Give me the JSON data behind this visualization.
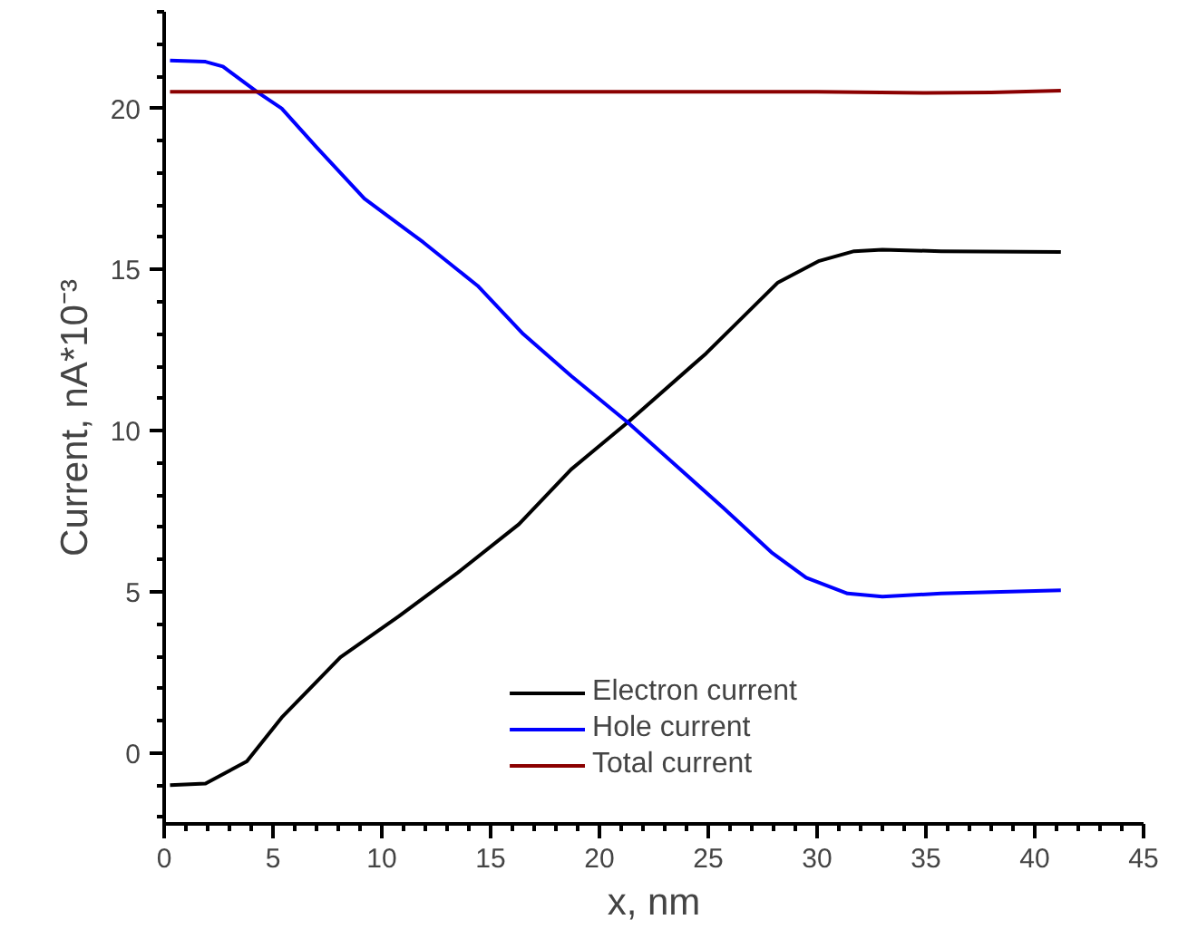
{
  "chart_data": {
    "type": "line",
    "xlabel": "x, nm",
    "ylabel": "Current, nA*10⁻³",
    "xlim": [
      0,
      45
    ],
    "ylim": [
      -2.2,
      23
    ],
    "xticks": [
      0,
      5,
      10,
      15,
      20,
      25,
      30,
      35,
      40,
      45
    ],
    "yticks": [
      0,
      5,
      10,
      15,
      20
    ],
    "grid": false,
    "legend": "bottom",
    "line_style": "solid",
    "marker": "none",
    "series": [
      {
        "name": "Electron current",
        "color": "#000000",
        "x": [
          0.27,
          1.9,
          3.8,
          5.4,
          8.1,
          10.8,
          13.5,
          16.3,
          18.7,
          21.3,
          24.9,
          28.2,
          30.1,
          31.7,
          33.0,
          35.7,
          41.2
        ],
        "values": [
          -1.0,
          -0.95,
          -0.26,
          1.1,
          2.97,
          4.25,
          5.6,
          7.1,
          8.8,
          10.26,
          12.4,
          14.6,
          15.27,
          15.57,
          15.62,
          15.57,
          15.55
        ]
      },
      {
        "name": "Hole current",
        "color": "#0000ff",
        "x": [
          0.27,
          1.9,
          2.7,
          4.3,
          5.4,
          7.0,
          9.2,
          11.9,
          14.4,
          16.5,
          18.7,
          21.3,
          25.7,
          27.9,
          29.5,
          31.4,
          33.0,
          35.7,
          41.2
        ],
        "values": [
          21.49,
          21.45,
          21.3,
          20.5,
          20.0,
          18.8,
          17.2,
          15.85,
          14.5,
          13.0,
          11.7,
          10.26,
          7.6,
          6.23,
          5.44,
          4.95,
          4.85,
          4.95,
          5.05
        ]
      },
      {
        "name": "Total current",
        "color": "#8b0000",
        "x": [
          0.27,
          10,
          20,
          30,
          35,
          38,
          41.2
        ],
        "values": [
          20.52,
          20.52,
          20.52,
          20.52,
          20.48,
          20.5,
          20.55
        ]
      }
    ]
  }
}
